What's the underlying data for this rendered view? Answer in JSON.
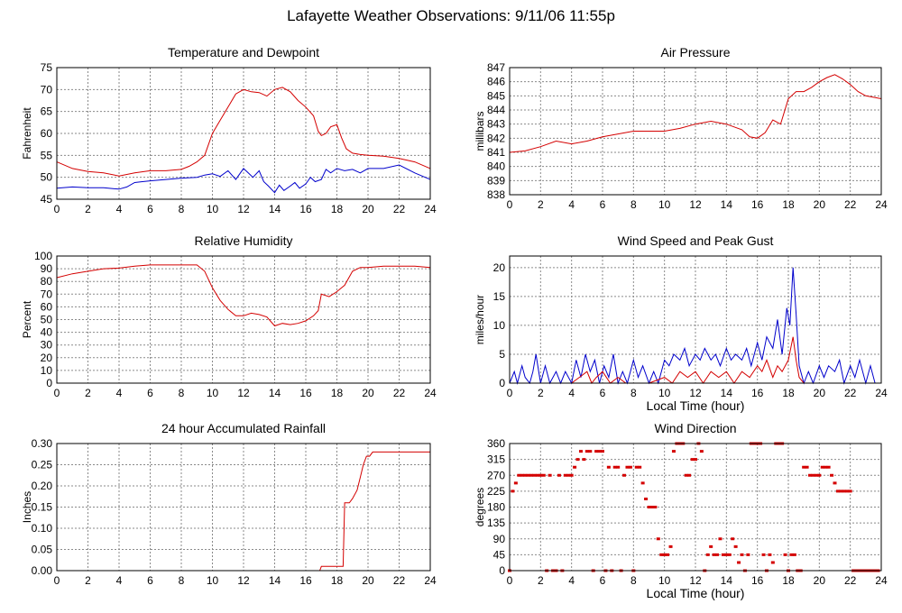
{
  "page_title": "Lafayette Weather Observations: 9/11/06 11:55p",
  "colors": {
    "temperature": "#d40000",
    "dewpoint": "#0000cc",
    "grid": "#8a8a8a"
  },
  "chart_data": [
    {
      "id": "temp",
      "type": "line",
      "title": "Temperature and Dewpoint",
      "xlabel": "",
      "ylabel": "Fahrenheit",
      "xlim": [
        0,
        24
      ],
      "ylim": [
        45,
        75
      ],
      "xticks": [
        0,
        2,
        4,
        6,
        8,
        10,
        12,
        14,
        16,
        18,
        20,
        22,
        24
      ],
      "yticks": [
        45,
        50,
        55,
        60,
        65,
        70,
        75
      ],
      "series": [
        {
          "color": "#d40000",
          "x": [
            0,
            1,
            2,
            3,
            4,
            5,
            6,
            7,
            8,
            8.5,
            9,
            9.5,
            10,
            10.5,
            11,
            11.5,
            12,
            12.5,
            13,
            13.5,
            14,
            14.5,
            15,
            15.5,
            16,
            16.5,
            16.8,
            17,
            17.3,
            17.6,
            18,
            18.3,
            18.6,
            19,
            19.5,
            20,
            21,
            22,
            23,
            24
          ],
          "y": [
            53.5,
            52,
            51.3,
            51,
            50.3,
            51,
            51.5,
            51.5,
            51.8,
            52.5,
            53.5,
            55,
            60,
            63,
            66,
            69,
            70,
            69.5,
            69.3,
            68.5,
            70,
            70.5,
            69.5,
            67.5,
            66,
            64,
            60.5,
            59.5,
            60,
            61.5,
            62,
            59,
            56.5,
            55.5,
            55.2,
            55,
            54.8,
            54.3,
            53.5,
            52
          ]
        },
        {
          "color": "#0000cc",
          "x": [
            0,
            1,
            2,
            3,
            4,
            4.5,
            5,
            5.5,
            6,
            7,
            8,
            9,
            9.5,
            10,
            10.5,
            11,
            11.5,
            12,
            12.3,
            12.6,
            13,
            13.3,
            13.6,
            14,
            14.3,
            14.6,
            15,
            15.3,
            15.6,
            16,
            16.3,
            16.6,
            17,
            17.3,
            17.6,
            18,
            18.5,
            19,
            19.5,
            20,
            21,
            22,
            23,
            24
          ],
          "y": [
            47.5,
            47.8,
            47.6,
            47.6,
            47.3,
            47.8,
            48.8,
            49,
            49.2,
            49.5,
            49.8,
            50,
            50.5,
            50.8,
            50.2,
            51.5,
            49.5,
            52,
            51,
            50,
            51.5,
            49,
            48,
            46.5,
            48.2,
            47,
            48,
            48.8,
            47.5,
            48.5,
            50,
            49,
            49.5,
            51.8,
            51,
            52,
            51.5,
            51.8,
            51,
            52,
            52,
            52.8,
            51,
            49.5
          ]
        }
      ]
    },
    {
      "id": "pressure",
      "type": "line",
      "title": "Air Pressure",
      "xlabel": "",
      "ylabel": "millibars",
      "xlim": [
        0,
        24
      ],
      "ylim": [
        838,
        847
      ],
      "xticks": [
        0,
        2,
        4,
        6,
        8,
        10,
        12,
        14,
        16,
        18,
        20,
        22,
        24
      ],
      "yticks": [
        838,
        839,
        840,
        841,
        842,
        843,
        844,
        845,
        846,
        847
      ],
      "series": [
        {
          "color": "#d40000",
          "x": [
            0,
            1,
            2,
            3,
            4,
            5,
            6,
            7,
            8,
            9,
            10,
            11,
            12,
            13,
            14,
            15,
            15.5,
            16,
            16.5,
            17,
            17.5,
            18,
            18.5,
            19,
            19.5,
            20,
            20.5,
            21,
            21.5,
            22,
            22.5,
            23,
            23.5,
            24
          ],
          "y": [
            841,
            841.1,
            841.4,
            841.8,
            841.6,
            841.8,
            842.1,
            842.3,
            842.5,
            842.5,
            842.5,
            842.7,
            843,
            843.2,
            843.0,
            842.6,
            842.1,
            842,
            842.4,
            843.3,
            843,
            844.8,
            845.3,
            845.3,
            845.6,
            846.0,
            846.3,
            846.5,
            846.2,
            845.8,
            845.3,
            845.0,
            844.9,
            844.8
          ]
        }
      ]
    },
    {
      "id": "humidity",
      "type": "line",
      "title": "Relative Humidity",
      "xlabel": "",
      "ylabel": "Percent",
      "xlim": [
        0,
        24
      ],
      "ylim": [
        0,
        100
      ],
      "xticks": [
        0,
        2,
        4,
        6,
        8,
        10,
        12,
        14,
        16,
        18,
        20,
        22,
        24
      ],
      "yticks": [
        0,
        10,
        20,
        30,
        40,
        50,
        60,
        70,
        80,
        90,
        100
      ],
      "series": [
        {
          "color": "#d40000",
          "x": [
            0,
            1,
            2,
            3,
            4,
            5,
            6,
            7,
            8,
            9,
            9.5,
            10,
            10.5,
            11,
            11.5,
            12,
            12.5,
            13,
            13.5,
            14,
            14.5,
            15,
            15.5,
            16,
            16.5,
            16.8,
            17,
            17.5,
            18,
            18.5,
            19,
            19.5,
            20,
            21,
            22,
            23,
            24
          ],
          "y": [
            83,
            86,
            88,
            90,
            90.5,
            92,
            93,
            93,
            93,
            93,
            88,
            75,
            65,
            58,
            53,
            53,
            55,
            54,
            52,
            45,
            47,
            46,
            47,
            49,
            53,
            57,
            70,
            68,
            72,
            77,
            88,
            91,
            91,
            92,
            92,
            92,
            91
          ]
        }
      ]
    },
    {
      "id": "wind",
      "type": "line",
      "title": "Wind Speed and Peak Gust",
      "xlabel": "Local Time (hour)",
      "ylabel": "miles/hour",
      "xlim": [
        0,
        24
      ],
      "ylim": [
        0,
        22
      ],
      "xticks": [
        0,
        2,
        4,
        6,
        8,
        10,
        12,
        14,
        16,
        18,
        20,
        22,
        24
      ],
      "yticks": [
        0,
        5,
        10,
        15,
        20
      ],
      "series": [
        {
          "color": "#0000cc",
          "x": [
            0,
            0.3,
            0.5,
            0.8,
            1,
            1.3,
            1.5,
            1.7,
            2,
            2.3,
            2.6,
            3,
            3.3,
            3.6,
            4,
            4.3,
            4.6,
            4.9,
            5.2,
            5.5,
            5.8,
            6.1,
            6.4,
            6.7,
            7,
            7.3,
            7.6,
            8,
            8.3,
            8.6,
            9,
            9.3,
            9.6,
            10,
            10.3,
            10.6,
            11,
            11.3,
            11.6,
            12,
            12.3,
            12.6,
            13,
            13.3,
            13.6,
            14,
            14.3,
            14.6,
            15,
            15.3,
            15.6,
            16,
            16.3,
            16.6,
            17,
            17.3,
            17.6,
            17.9,
            18.1,
            18.3,
            18.5,
            18.7,
            19,
            19.3,
            19.6,
            20,
            20.3,
            20.6,
            21,
            21.3,
            21.6,
            22,
            22.3,
            22.6,
            23,
            23.3,
            23.6,
            24
          ],
          "y": [
            0,
            2,
            0,
            3,
            1,
            0,
            2,
            5,
            0,
            3,
            0,
            2,
            0,
            2,
            0,
            4,
            1,
            5,
            2,
            4,
            0,
            3,
            1,
            5,
            0,
            2,
            0,
            4,
            1,
            3,
            0,
            2,
            0,
            4,
            3,
            5,
            4,
            6,
            3,
            5,
            4,
            6,
            4,
            5,
            3,
            6,
            4,
            5,
            4,
            6,
            3,
            7,
            4,
            8,
            6,
            11,
            5,
            13,
            10,
            20,
            12,
            3,
            0,
            2,
            0,
            3,
            1,
            3,
            2,
            4,
            0,
            3,
            1,
            4,
            0,
            3,
            0,
            0
          ]
        },
        {
          "color": "#d40000",
          "x": [
            0,
            1,
            2,
            3,
            4,
            4.5,
            5,
            5.3,
            5.6,
            6,
            6.5,
            7,
            7.5,
            8,
            9,
            10,
            10.5,
            11,
            11.5,
            12,
            12.5,
            13,
            13.5,
            14,
            14.5,
            15,
            15.5,
            16,
            16.3,
            16.6,
            17,
            17.3,
            17.6,
            18,
            18.3,
            18.5,
            18.7,
            19,
            20,
            21,
            22,
            23,
            24
          ],
          "y": [
            0,
            0,
            0,
            0,
            0,
            1,
            2,
            0,
            1,
            2,
            0,
            1,
            0,
            0,
            0,
            1,
            0,
            2,
            1,
            2,
            0,
            2,
            1,
            2,
            0,
            2,
            1,
            3,
            2,
            4,
            1,
            3,
            2,
            4,
            8,
            4,
            1,
            0,
            0,
            0,
            0,
            0,
            0
          ]
        }
      ]
    },
    {
      "id": "rain",
      "type": "line",
      "title": "24 hour Accumulated Rainfall",
      "xlabel": "",
      "ylabel": "Inches",
      "xlim": [
        0,
        24
      ],
      "ylim": [
        0,
        0.3
      ],
      "xticks": [
        0,
        2,
        4,
        6,
        8,
        10,
        12,
        14,
        16,
        18,
        20,
        22,
        24
      ],
      "yticks": [
        0.0,
        0.05,
        0.1,
        0.15,
        0.2,
        0.25,
        0.3
      ],
      "ytick_labels": [
        "0.00",
        "0.05",
        "0.10",
        "0.15",
        "0.20",
        "0.25",
        "0.30"
      ],
      "series": [
        {
          "color": "#d40000",
          "x": [
            0,
            16.9,
            17,
            18.4,
            18.5,
            18.8,
            19.0,
            19.3,
            19.5,
            19.7,
            19.9,
            20.1,
            20.3,
            24
          ],
          "y": [
            0,
            0,
            0.01,
            0.01,
            0.16,
            0.16,
            0.17,
            0.19,
            0.22,
            0.25,
            0.27,
            0.27,
            0.28,
            0.28
          ]
        }
      ]
    },
    {
      "id": "direction",
      "type": "scatter",
      "title": "Wind Direction",
      "xlabel": "Local Time (hour)",
      "ylabel": "degrees",
      "xlim": [
        0,
        24
      ],
      "ylim": [
        0,
        360
      ],
      "xticks": [
        0,
        2,
        4,
        6,
        8,
        10,
        12,
        14,
        16,
        18,
        20,
        22,
        24
      ],
      "yticks": [
        0,
        45,
        90,
        135,
        180,
        225,
        270,
        315,
        360
      ],
      "series": [
        {
          "color": "#d40000",
          "x": [
            0,
            0.2,
            0.4,
            0.6,
            0.8,
            1.0,
            1.2,
            1.4,
            1.6,
            1.8,
            2.0,
            2.2,
            2.4,
            2.6,
            2.8,
            3.0,
            3.2,
            3.4,
            3.6,
            3.8,
            4.0,
            4.2,
            4.4,
            4.6,
            4.8,
            5.0,
            5.2,
            5.4,
            5.6,
            5.8,
            6.0,
            6.2,
            6.4,
            6.6,
            6.8,
            7.0,
            7.2,
            7.4,
            7.6,
            7.8,
            8.0,
            8.2,
            8.4,
            8.6,
            8.8,
            9.0,
            9.2,
            9.4,
            9.6,
            9.8,
            10.0,
            10.2,
            10.4,
            10.6,
            10.8,
            11.0,
            11.2,
            11.4,
            11.6,
            11.8,
            12.0,
            12.2,
            12.4,
            12.6,
            12.8,
            13.0,
            13.2,
            13.4,
            13.6,
            13.8,
            14.0,
            14.2,
            14.4,
            14.6,
            14.8,
            15.0,
            15.2,
            15.4,
            15.6,
            15.8,
            16.0,
            16.2,
            16.4,
            16.6,
            16.8,
            17.0,
            17.2,
            17.4,
            17.6,
            17.8,
            18.0,
            18.2,
            18.4,
            18.6,
            18.8,
            19.0,
            19.2,
            19.4,
            19.6,
            19.8,
            20.0,
            20.2,
            20.4,
            20.6,
            20.8,
            21.0,
            21.2,
            21.4,
            21.6,
            21.8,
            22.0,
            22.2,
            22.4,
            22.6,
            22.8,
            23.0,
            23.2,
            23.4,
            23.6,
            23.8
          ],
          "y": [
            0,
            225,
            248,
            270,
            270,
            270,
            270,
            270,
            270,
            270,
            270,
            270,
            0,
            270,
            0,
            0,
            270,
            0,
            270,
            270,
            270,
            293,
            315,
            338,
            315,
            338,
            338,
            0,
            338,
            338,
            338,
            0,
            293,
            0,
            293,
            293,
            0,
            270,
            293,
            293,
            0,
            293,
            293,
            248,
            203,
            180,
            180,
            180,
            90,
            45,
            45,
            45,
            68,
            338,
            360,
            360,
            360,
            270,
            270,
            315,
            315,
            360,
            338,
            0,
            45,
            68,
            45,
            45,
            90,
            45,
            45,
            45,
            90,
            68,
            23,
            45,
            0,
            45,
            360,
            360,
            360,
            360,
            45,
            0,
            45,
            23,
            360,
            360,
            360,
            45,
            0,
            45,
            45,
            0,
            0,
            293,
            293,
            270,
            270,
            270,
            270,
            293,
            293,
            293,
            270,
            248,
            225,
            225,
            225,
            225,
            225,
            0,
            0,
            0,
            0,
            0,
            0,
            0,
            0,
            0
          ]
        }
      ]
    }
  ]
}
